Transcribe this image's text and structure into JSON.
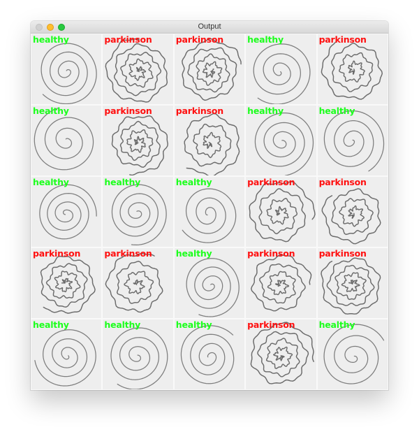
{
  "window": {
    "title": "Output",
    "controls": {
      "close": "close",
      "minimize": "minimize",
      "zoom": "zoom"
    }
  },
  "colors": {
    "healthy": "#1cff1c",
    "parkinson": "#ff1010",
    "drawing": "#555555",
    "background": "#f4f4f4"
  },
  "grid": {
    "rows": [
      {
        "tiles": [
          {
            "label": "healthy",
            "class": "healthy"
          },
          {
            "label": "parkinson",
            "class": "parkinson"
          },
          {
            "label": "parkinson",
            "class": "parkinson"
          },
          {
            "label": "healthy",
            "class": "healthy"
          },
          {
            "label": "parkinson",
            "class": "parkinson"
          }
        ]
      },
      {
        "tiles": [
          {
            "label": "healthy",
            "class": "healthy"
          },
          {
            "label": "parkinson",
            "class": "parkinson"
          },
          {
            "label": "parkinson",
            "class": "parkinson"
          },
          {
            "label": "healthy",
            "class": "healthy"
          },
          {
            "label": "healthy",
            "class": "healthy"
          }
        ]
      },
      {
        "tiles": [
          {
            "label": "healthy",
            "class": "healthy"
          },
          {
            "label": "healthy",
            "class": "healthy"
          },
          {
            "label": "healthy",
            "class": "healthy"
          },
          {
            "label": "parkinson",
            "class": "parkinson"
          },
          {
            "label": "parkinson",
            "class": "parkinson"
          }
        ]
      },
      {
        "tiles": [
          {
            "label": "parkinson",
            "class": "parkinson"
          },
          {
            "label": "parkinson",
            "class": "parkinson"
          },
          {
            "label": "healthy",
            "class": "healthy"
          },
          {
            "label": "parkinson",
            "class": "parkinson"
          },
          {
            "label": "parkinson",
            "class": "parkinson"
          }
        ]
      },
      {
        "tiles": [
          {
            "label": "healthy",
            "class": "healthy"
          },
          {
            "label": "healthy",
            "class": "healthy"
          },
          {
            "label": "healthy",
            "class": "healthy"
          },
          {
            "label": "parkinson",
            "class": "parkinson"
          },
          {
            "label": "healthy",
            "class": "healthy"
          }
        ]
      }
    ]
  }
}
